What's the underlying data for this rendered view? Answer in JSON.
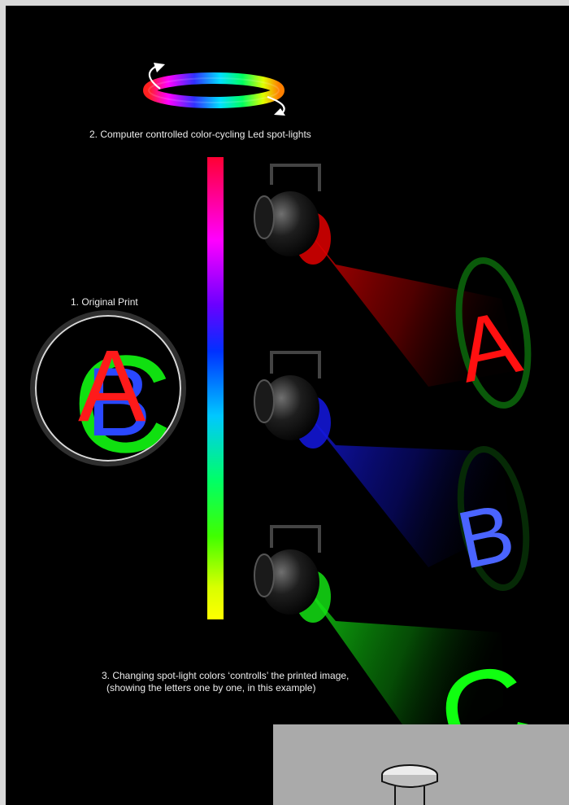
{
  "captions": {
    "original_print": "1. Original Print",
    "spotlights": "2. Computer controlled color-cycling Led spot-lights",
    "changing_line1": "3. Changing spot-light colors ‘controlls’ the printed image,",
    "changing_line2": "(showing the letters one by one, in this example)"
  },
  "print_letters": [
    "C",
    "B",
    "A"
  ],
  "spotlights": [
    {
      "name": "red",
      "color": "#e00000",
      "letter": "A"
    },
    {
      "name": "blue",
      "color": "#1418d0",
      "letter": "B"
    },
    {
      "name": "green",
      "color": "#10d010",
      "letter": "C"
    }
  ],
  "gradient_colors": [
    "#ff0033",
    "#ff00ff",
    "#6a00ff",
    "#0030ff",
    "#00c8ff",
    "#00ff66",
    "#40ff00",
    "#d8ff00",
    "#ffff00"
  ]
}
